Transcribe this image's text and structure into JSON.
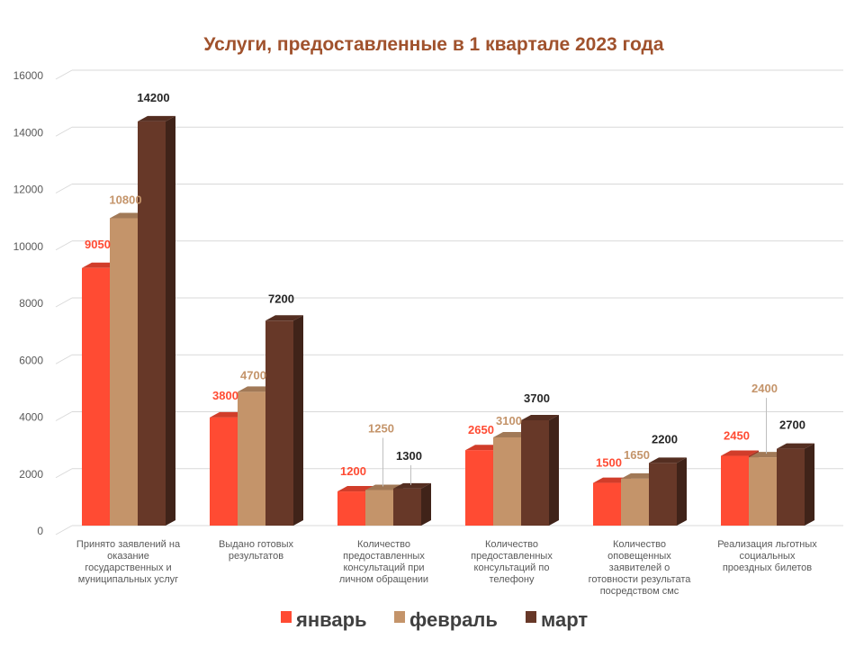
{
  "chart_data": {
    "type": "bar",
    "title": "Услуги, предоставленные в 1 квартале 2023 года",
    "categories": [
      [
        "Принято заявлений на",
        "оказание",
        "государственных и",
        "муниципальных услуг"
      ],
      [
        "Выдано готовых",
        "результатов"
      ],
      [
        "Количество",
        "предоставленных",
        "консультаций  при",
        "личном обращении"
      ],
      [
        "Количество",
        "предоставленных",
        "консультаций  по",
        "телефону"
      ],
      [
        "Количество",
        "оповещенных",
        "заявителей о",
        "готовности результата",
        "посредством смс"
      ],
      [
        "Реализация льготных",
        "социальных",
        "проездных билетов"
      ]
    ],
    "series": [
      {
        "name": "январь",
        "color": "#ff4b33",
        "values": [
          9050,
          3800,
          1200,
          2650,
          1500,
          2450
        ]
      },
      {
        "name": "февраль",
        "color": "#c4946a",
        "values": [
          10800,
          4700,
          1250,
          3100,
          1650,
          2400
        ]
      },
      {
        "name": "март",
        "color": "#673828",
        "values": [
          14200,
          7200,
          1300,
          3700,
          2200,
          2700
        ]
      }
    ],
    "yticks": [
      0,
      2000,
      4000,
      6000,
      8000,
      10000,
      12000,
      14000,
      16000
    ],
    "ylim": [
      0,
      16000
    ],
    "grid": true,
    "legend_position": "bottom",
    "title_color": "#a0522d"
  }
}
